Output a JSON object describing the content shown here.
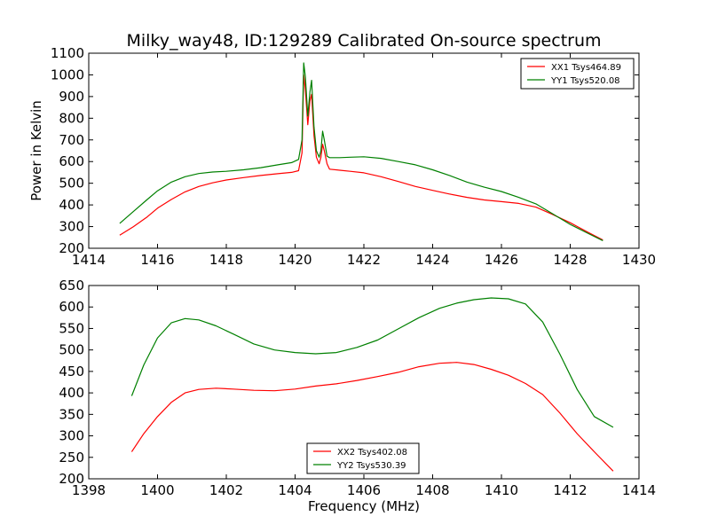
{
  "figure_title": "Milky_way48, ID:129289 Calibrated On-source spectrum",
  "chart_data": [
    {
      "type": "line",
      "title": "Milky_way48, ID:129289 Calibrated On-source spectrum",
      "xlabel": "",
      "ylabel": "Power in Kelvin",
      "xlim": [
        1414,
        1430
      ],
      "ylim": [
        200,
        1100
      ],
      "xticks": [
        "1414",
        "1416",
        "1418",
        "1420",
        "1422",
        "1424",
        "1426",
        "1428",
        "1430"
      ],
      "yticks": [
        "200",
        "300",
        "400",
        "500",
        "600",
        "700",
        "800",
        "900",
        "1000",
        "1100"
      ],
      "grid": false,
      "legend_position": "top-right",
      "series": [
        {
          "name": "XX1 Tsys464.89",
          "color": "#ff0000",
          "x": [
            1414.9,
            1415.3,
            1415.7,
            1416.0,
            1416.4,
            1416.8,
            1417.2,
            1417.6,
            1418.0,
            1418.5,
            1419.0,
            1419.5,
            1419.9,
            1420.1,
            1420.2,
            1420.25,
            1420.3,
            1420.37,
            1420.43,
            1420.48,
            1420.55,
            1420.62,
            1420.7,
            1420.75,
            1420.8,
            1420.85,
            1420.93,
            1421.0,
            1421.3,
            1421.6,
            1422.0,
            1422.5,
            1423.0,
            1423.5,
            1424.0,
            1424.5,
            1425.0,
            1425.5,
            1426.0,
            1426.5,
            1427.0,
            1427.5,
            1428.0,
            1428.5,
            1428.95
          ],
          "values": [
            260,
            300,
            345,
            385,
            425,
            460,
            485,
            502,
            515,
            526,
            536,
            544,
            550,
            558,
            640,
            1000,
            930,
            770,
            880,
            910,
            720,
            620,
            590,
            620,
            680,
            650,
            590,
            565,
            560,
            555,
            548,
            530,
            508,
            485,
            467,
            450,
            435,
            423,
            415,
            407,
            390,
            355,
            318,
            275,
            238
          ]
        },
        {
          "name": "YY1 Tsys520.08",
          "color": "#008000",
          "x": [
            1414.9,
            1415.3,
            1415.7,
            1416.0,
            1416.4,
            1416.8,
            1417.2,
            1417.6,
            1418.0,
            1418.5,
            1419.0,
            1419.5,
            1419.9,
            1420.1,
            1420.2,
            1420.25,
            1420.3,
            1420.37,
            1420.43,
            1420.48,
            1420.55,
            1420.62,
            1420.7,
            1420.75,
            1420.8,
            1420.85,
            1420.93,
            1421.0,
            1421.3,
            1421.6,
            1422.0,
            1422.5,
            1423.0,
            1423.5,
            1424.0,
            1424.5,
            1425.0,
            1425.5,
            1426.0,
            1426.5,
            1427.0,
            1427.5,
            1428.0,
            1428.5,
            1428.95
          ],
          "values": [
            315,
            370,
            425,
            465,
            505,
            530,
            545,
            552,
            555,
            562,
            572,
            585,
            595,
            610,
            700,
            1055,
            990,
            810,
            920,
            975,
            760,
            650,
            620,
            650,
            740,
            700,
            625,
            618,
            618,
            620,
            622,
            615,
            600,
            585,
            562,
            535,
            505,
            482,
            462,
            435,
            405,
            358,
            310,
            270,
            235
          ]
        }
      ]
    },
    {
      "type": "line",
      "title": "",
      "xlabel": "Frequency (MHz)",
      "ylabel": "",
      "xlim": [
        1398,
        1414
      ],
      "ylim": [
        200,
        650
      ],
      "xticks": [
        "1398",
        "1400",
        "1402",
        "1404",
        "1406",
        "1408",
        "1410",
        "1412",
        "1414"
      ],
      "yticks": [
        "200",
        "250",
        "300",
        "350",
        "400",
        "450",
        "500",
        "550",
        "600",
        "650"
      ],
      "grid": false,
      "legend_position": "bottom-center",
      "series": [
        {
          "name": "XX2 Tsys402.08",
          "color": "#ff0000",
          "x": [
            1399.25,
            1399.6,
            1400.0,
            1400.4,
            1400.8,
            1401.2,
            1401.7,
            1402.2,
            1402.8,
            1403.4,
            1404.0,
            1404.6,
            1405.2,
            1405.8,
            1406.4,
            1407.0,
            1407.6,
            1408.2,
            1408.7,
            1409.2,
            1409.7,
            1410.2,
            1410.7,
            1411.2,
            1411.7,
            1412.2,
            1412.7,
            1413.25
          ],
          "values": [
            263,
            305,
            345,
            378,
            400,
            408,
            411,
            409,
            406,
            405,
            409,
            416,
            421,
            429,
            438,
            448,
            461,
            469,
            471,
            466,
            455,
            441,
            422,
            396,
            353,
            305,
            263,
            218
          ]
        },
        {
          "name": "YY2 Tsys530.39",
          "color": "#008000",
          "x": [
            1399.25,
            1399.6,
            1400.0,
            1400.4,
            1400.8,
            1401.2,
            1401.7,
            1402.2,
            1402.8,
            1403.4,
            1404.0,
            1404.6,
            1405.2,
            1405.8,
            1406.4,
            1407.0,
            1407.6,
            1408.2,
            1408.7,
            1409.2,
            1409.7,
            1410.2,
            1410.7,
            1411.2,
            1411.7,
            1412.2,
            1412.7,
            1413.25
          ],
          "values": [
            393,
            465,
            528,
            563,
            573,
            570,
            556,
            537,
            514,
            500,
            494,
            491,
            494,
            506,
            523,
            549,
            575,
            597,
            609,
            617,
            621,
            619,
            607,
            565,
            490,
            408,
            345,
            320
          ]
        }
      ]
    }
  ]
}
